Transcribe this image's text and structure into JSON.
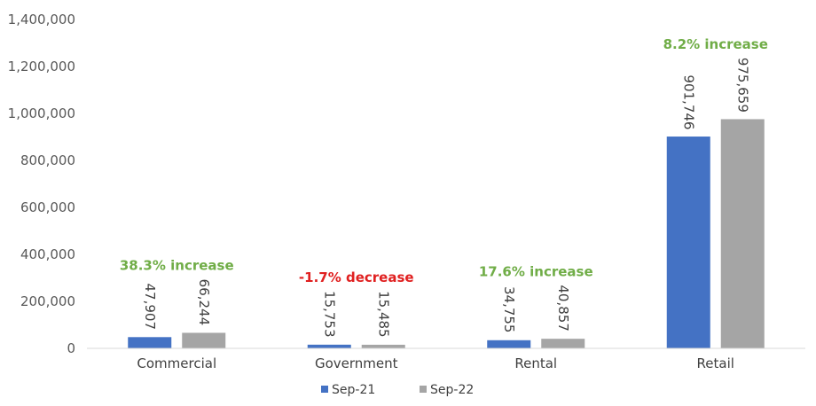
{
  "chart_data": {
    "type": "bar",
    "categories": [
      "Commercial",
      "Government",
      "Rental",
      "Retail"
    ],
    "series": [
      {
        "name": "Sep-21",
        "color": "#4472C4",
        "values": [
          47907,
          15753,
          34755,
          901746
        ],
        "labels": [
          "47,907",
          "15,753",
          "34,755",
          "901,746"
        ]
      },
      {
        "name": "Sep-22",
        "color": "#A5A5A5",
        "values": [
          66244,
          15485,
          40857,
          975659
        ],
        "labels": [
          "66,244",
          "15,485",
          "40,857",
          "975,659"
        ]
      }
    ],
    "annotations": [
      {
        "text": "38.3% increase",
        "color": "#70AD47"
      },
      {
        "text": "-1.7% decrease",
        "color": "#E02020"
      },
      {
        "text": "17.6% increase",
        "color": "#70AD47"
      },
      {
        "text": "8.2% increase",
        "color": "#70AD47"
      }
    ],
    "yticks": [
      "0",
      "200,000",
      "400,000",
      "600,000",
      "800,000",
      "1,000,000",
      "1,200,000",
      "1,400,000"
    ],
    "ylim": [
      0,
      1400000
    ],
    "legend_position": "bottom",
    "grid": false
  }
}
